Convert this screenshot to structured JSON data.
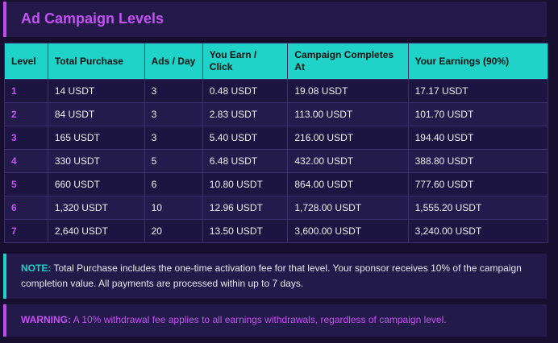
{
  "header": {
    "title": "Ad Campaign Levels"
  },
  "table": {
    "columns": [
      "Level",
      "Total Purchase",
      "Ads / Day",
      "You Earn / Click",
      "Campaign Completes At",
      "Your Earnings (90%)"
    ],
    "rows": [
      [
        "1",
        "14 USDT",
        "3",
        "0.48 USDT",
        "19.08 USDT",
        "17.17 USDT"
      ],
      [
        "2",
        "84 USDT",
        "3",
        "2.83 USDT",
        "113.00 USDT",
        "101.70 USDT"
      ],
      [
        "3",
        "165 USDT",
        "3",
        "5.40 USDT",
        "216.00 USDT",
        "194.40 USDT"
      ],
      [
        "4",
        "330 USDT",
        "5",
        "6.48 USDT",
        "432.00 USDT",
        "388.80 USDT"
      ],
      [
        "5",
        "660 USDT",
        "6",
        "10.80 USDT",
        "864.00 USDT",
        "777.60 USDT"
      ],
      [
        "6",
        "1,320 USDT",
        "10",
        "12.96 USDT",
        "1,728.00 USDT",
        "1,555.20 USDT"
      ],
      [
        "7",
        "2,640 USDT",
        "20",
        "13.50 USDT",
        "3,600.00 USDT",
        "3,240.00 USDT"
      ]
    ]
  },
  "note": {
    "label": "NOTE:",
    "text": "Total Purchase includes the one-time activation fee for that level. Your sponsor receives 10% of the campaign completion value. All payments are processed within up to 7 days."
  },
  "warning": {
    "label": "WARNING:",
    "text": "A 10% withdrawal fee applies to all earnings withdrawals, regardless of campaign level."
  }
}
